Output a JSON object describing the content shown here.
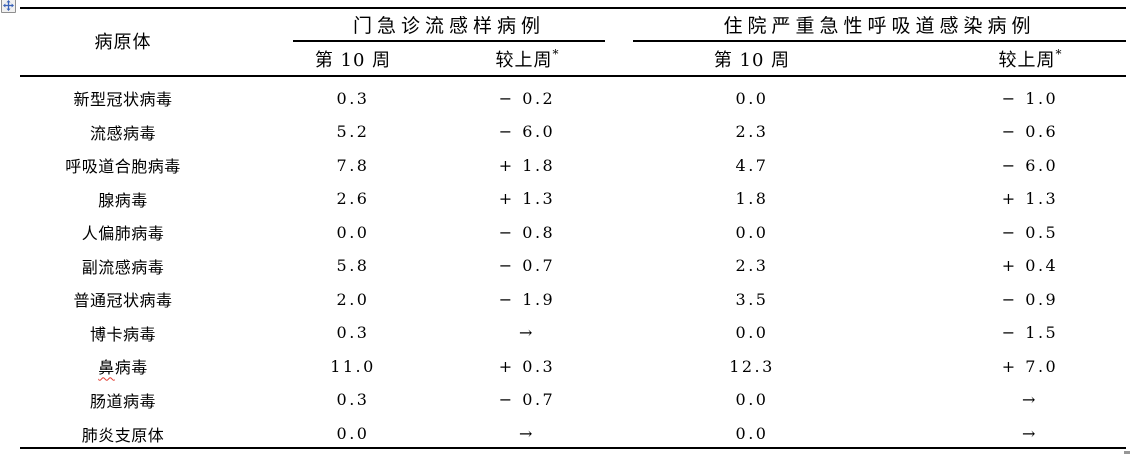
{
  "document": {
    "icons": {
      "table_move_handle": "four-way-move-cross",
      "table_resize_handle": "small-gray-square"
    },
    "colors": {
      "text": "#000000",
      "rule": "#000000",
      "spellcheck_underline": "#e03a2f",
      "move_handle_arrow": "#3b63b8"
    }
  },
  "table": {
    "corner_header": "病原体",
    "groups": [
      {
        "label": "门急诊流感样病例",
        "sub_columns": [
          {
            "label": "第 10 周",
            "sup": ""
          },
          {
            "label": "较上周",
            "sup": "*"
          }
        ]
      },
      {
        "label": "住院严重急性呼吸道感染病例",
        "sub_columns": [
          {
            "label": "第 10 周",
            "sup": ""
          },
          {
            "label": "较上周",
            "sup": "*"
          }
        ]
      }
    ],
    "rows": [
      {
        "pathogen": "新型冠状病毒",
        "ili_week10": "0.3",
        "ili_change": "− 0.2",
        "sari_week10": "0.0",
        "sari_change": "− 1.0"
      },
      {
        "pathogen": "流感病毒",
        "ili_week10": "5.2",
        "ili_change": "− 6.0",
        "sari_week10": "2.3",
        "sari_change": "− 0.6"
      },
      {
        "pathogen": "呼吸道合胞病毒",
        "ili_week10": "7.8",
        "ili_change": "+ 1.8",
        "sari_week10": "4.7",
        "sari_change": "− 6.0"
      },
      {
        "pathogen": "腺病毒",
        "ili_week10": "2.6",
        "ili_change": "+ 1.3",
        "sari_week10": "1.8",
        "sari_change": "+ 1.3"
      },
      {
        "pathogen": "人偏肺病毒",
        "ili_week10": "0.0",
        "ili_change": "− 0.8",
        "sari_week10": "0.0",
        "sari_change": "− 0.5"
      },
      {
        "pathogen": "副流感病毒",
        "ili_week10": "5.8",
        "ili_change": "− 0.7",
        "sari_week10": "2.3",
        "sari_change": "+ 0.4"
      },
      {
        "pathogen": "普通冠状病毒",
        "ili_week10": "2.0",
        "ili_change": "− 1.9",
        "sari_week10": "3.5",
        "sari_change": "− 0.9"
      },
      {
        "pathogen": "博卡病毒",
        "ili_week10": "0.3",
        "ili_change": "→",
        "sari_week10": "0.0",
        "sari_change": "− 1.5"
      },
      {
        "pathogen": "鼻病毒",
        "spellcheck_underline": true,
        "ili_week10": "11.0",
        "ili_change": "+ 0.3",
        "sari_week10": "12.3",
        "sari_change": "+ 7.0"
      },
      {
        "pathogen": "肠道病毒",
        "ili_week10": "0.3",
        "ili_change": "− 0.7",
        "sari_week10": "0.0",
        "sari_change": "→"
      },
      {
        "pathogen": "肺炎支原体",
        "ili_week10": "0.0",
        "ili_change": "→",
        "sari_week10": "0.0",
        "sari_change": "→"
      }
    ]
  }
}
